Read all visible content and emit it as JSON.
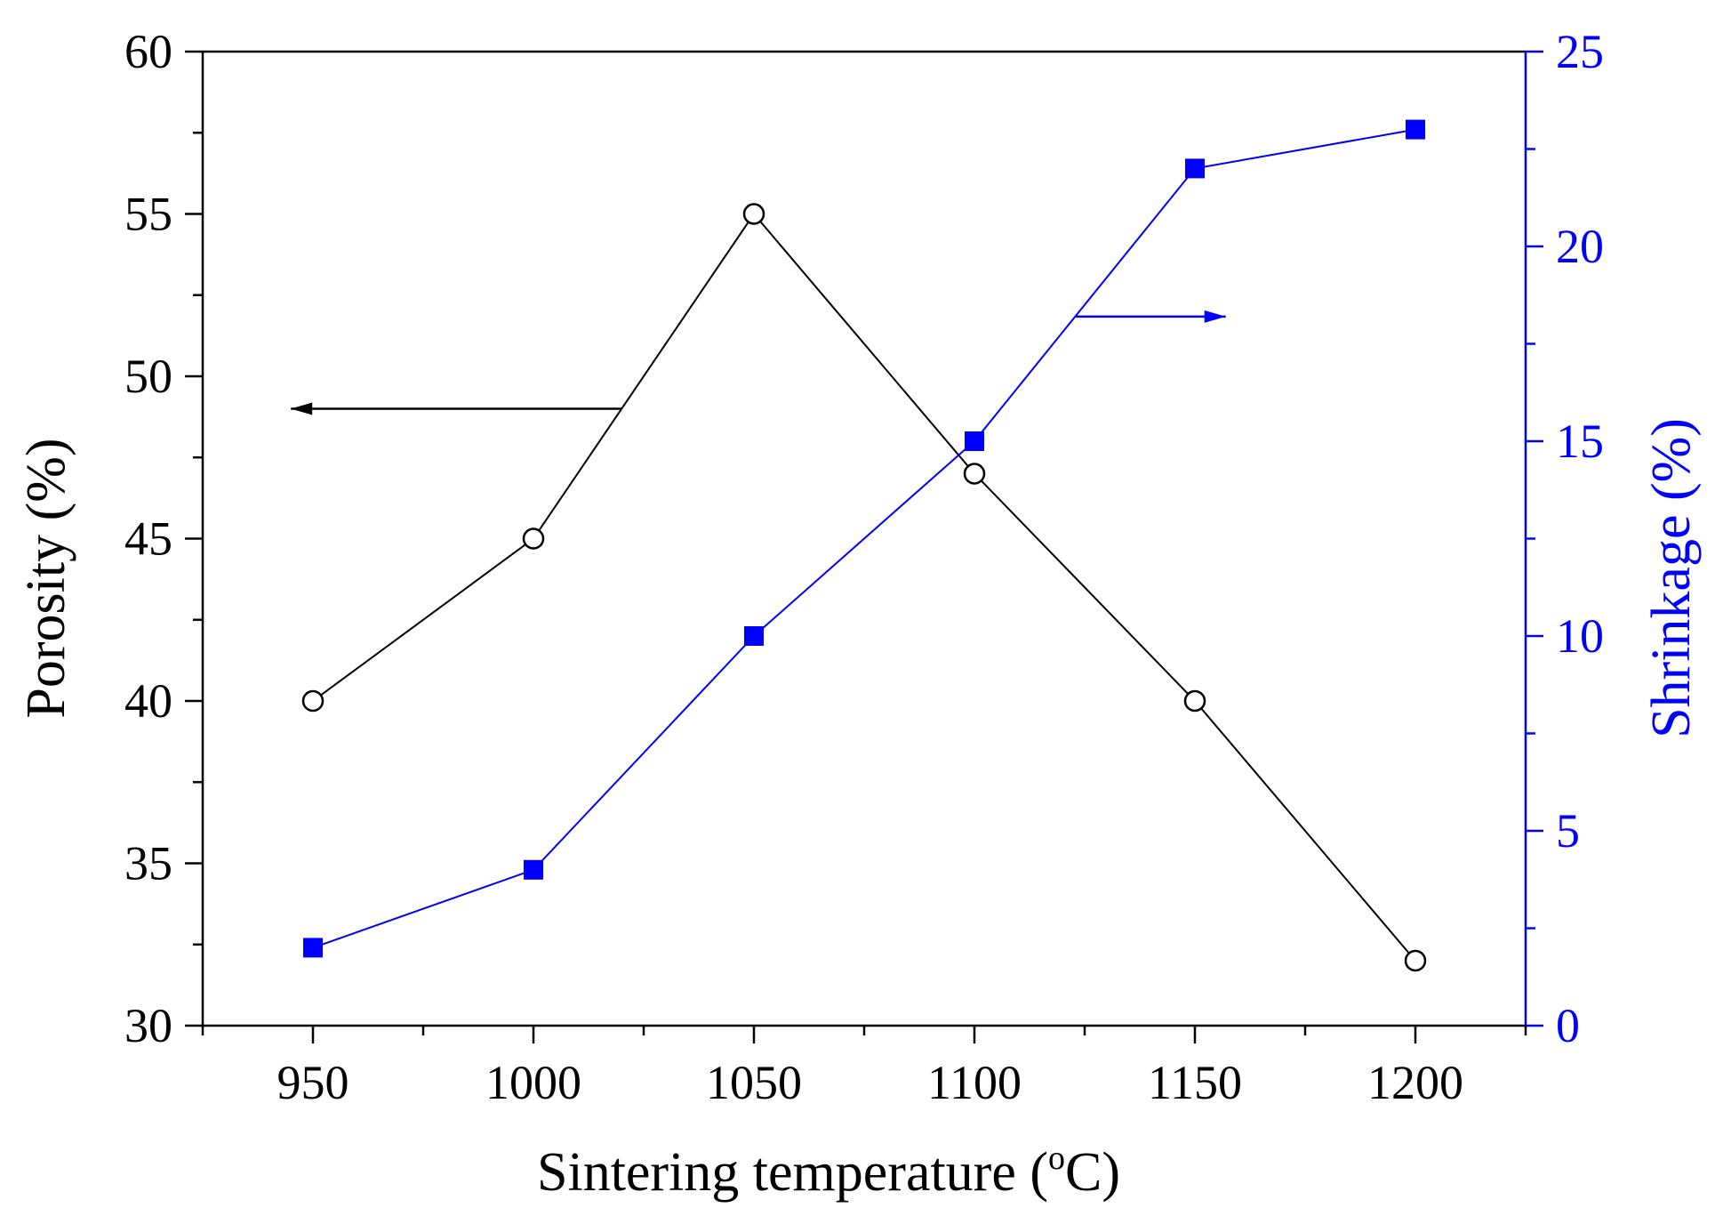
{
  "chart_data": {
    "type": "line",
    "x": [
      950,
      1000,
      1050,
      1100,
      1150,
      1200
    ],
    "xlabel": "Sintering temperature (",
    "xlabel_sup": "o",
    "xlabel_suffix": "C)",
    "xlim": [
      925,
      1225
    ],
    "xticks": [
      950,
      1000,
      1050,
      1100,
      1150,
      1200
    ],
    "y_left": {
      "label": "Porosity (%)",
      "lim": [
        30,
        60
      ],
      "ticks": [
        30,
        35,
        40,
        45,
        50,
        55,
        60
      ],
      "color": "#000000"
    },
    "y_right": {
      "label": "Shrinkage (%)",
      "lim": [
        0,
        25
      ],
      "ticks": [
        0,
        5,
        10,
        15,
        20,
        25
      ],
      "color": "#0000ff"
    },
    "series": [
      {
        "axis": "left",
        "marker": "open-circle",
        "color": "#000000",
        "values": [
          40,
          45,
          55,
          47,
          40,
          32
        ]
      },
      {
        "axis": "right",
        "marker": "filled-square",
        "color": "#0000ff",
        "values": [
          2,
          4,
          10,
          15,
          22,
          23
        ]
      }
    ],
    "annotations": [
      {
        "type": "arrow",
        "points_to": "left-axis",
        "x": [
          1020,
          945
        ],
        "y_left": 49,
        "color": "#000000"
      },
      {
        "type": "arrow",
        "points_to": "right-axis",
        "x": [
          1123,
          1157
        ],
        "y_right": 18.2,
        "color": "#0000ff"
      }
    ],
    "grid": false,
    "legend": "none"
  }
}
